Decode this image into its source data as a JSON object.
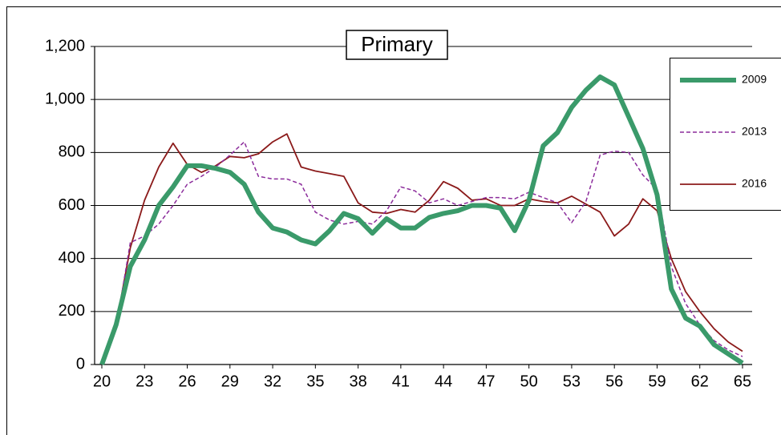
{
  "chart_data": {
    "type": "line",
    "title": "Primary",
    "x": [
      20,
      21,
      22,
      23,
      24,
      25,
      26,
      27,
      28,
      29,
      30,
      31,
      32,
      33,
      34,
      35,
      36,
      37,
      38,
      39,
      40,
      41,
      42,
      43,
      44,
      45,
      46,
      47,
      48,
      49,
      50,
      51,
      52,
      53,
      54,
      55,
      56,
      57,
      58,
      59,
      60,
      61,
      62,
      63,
      64,
      65
    ],
    "series": [
      {
        "name": "2009",
        "color": "#3a9a6a",
        "width": 6,
        "dash": "none",
        "values": [
          0,
          150,
          370,
          470,
          600,
          670,
          750,
          750,
          740,
          725,
          680,
          575,
          515,
          500,
          470,
          455,
          505,
          570,
          550,
          495,
          550,
          515,
          515,
          555,
          570,
          580,
          600,
          600,
          590,
          505,
          620,
          825,
          875,
          970,
          1035,
          1085,
          1055,
          935,
          815,
          640,
          285,
          175,
          145,
          75,
          40,
          5
        ]
      },
      {
        "name": "2013",
        "color": "#8b2b9b",
        "width": 1.5,
        "dash": "5,3",
        "values": [
          0,
          140,
          460,
          485,
          530,
          600,
          680,
          710,
          745,
          790,
          840,
          710,
          700,
          700,
          680,
          575,
          545,
          530,
          540,
          530,
          580,
          670,
          655,
          610,
          625,
          600,
          615,
          630,
          630,
          625,
          650,
          630,
          610,
          535,
          615,
          790,
          805,
          800,
          715,
          660,
          370,
          230,
          150,
          90,
          55,
          30
        ]
      },
      {
        "name": "2016",
        "color": "#8b1a1a",
        "width": 1.8,
        "dash": "none",
        "values": [
          0,
          150,
          440,
          620,
          745,
          835,
          755,
          725,
          750,
          785,
          780,
          795,
          840,
          870,
          745,
          730,
          720,
          710,
          610,
          575,
          570,
          585,
          575,
          620,
          690,
          665,
          620,
          625,
          600,
          600,
          625,
          615,
          610,
          635,
          605,
          575,
          485,
          530,
          625,
          580,
          400,
          275,
          200,
          135,
          85,
          50
        ]
      }
    ],
    "xlim": [
      20,
      65
    ],
    "xticks": [
      20,
      23,
      26,
      29,
      32,
      35,
      38,
      41,
      44,
      47,
      50,
      53,
      56,
      59,
      62,
      65
    ],
    "ylim": [
      0,
      1200
    ],
    "yticks": [
      0,
      200,
      400,
      600,
      800,
      {
        "value": 1000,
        "label": "1,000"
      },
      {
        "value": 1200,
        "label": "1,200"
      }
    ],
    "grid": true
  }
}
